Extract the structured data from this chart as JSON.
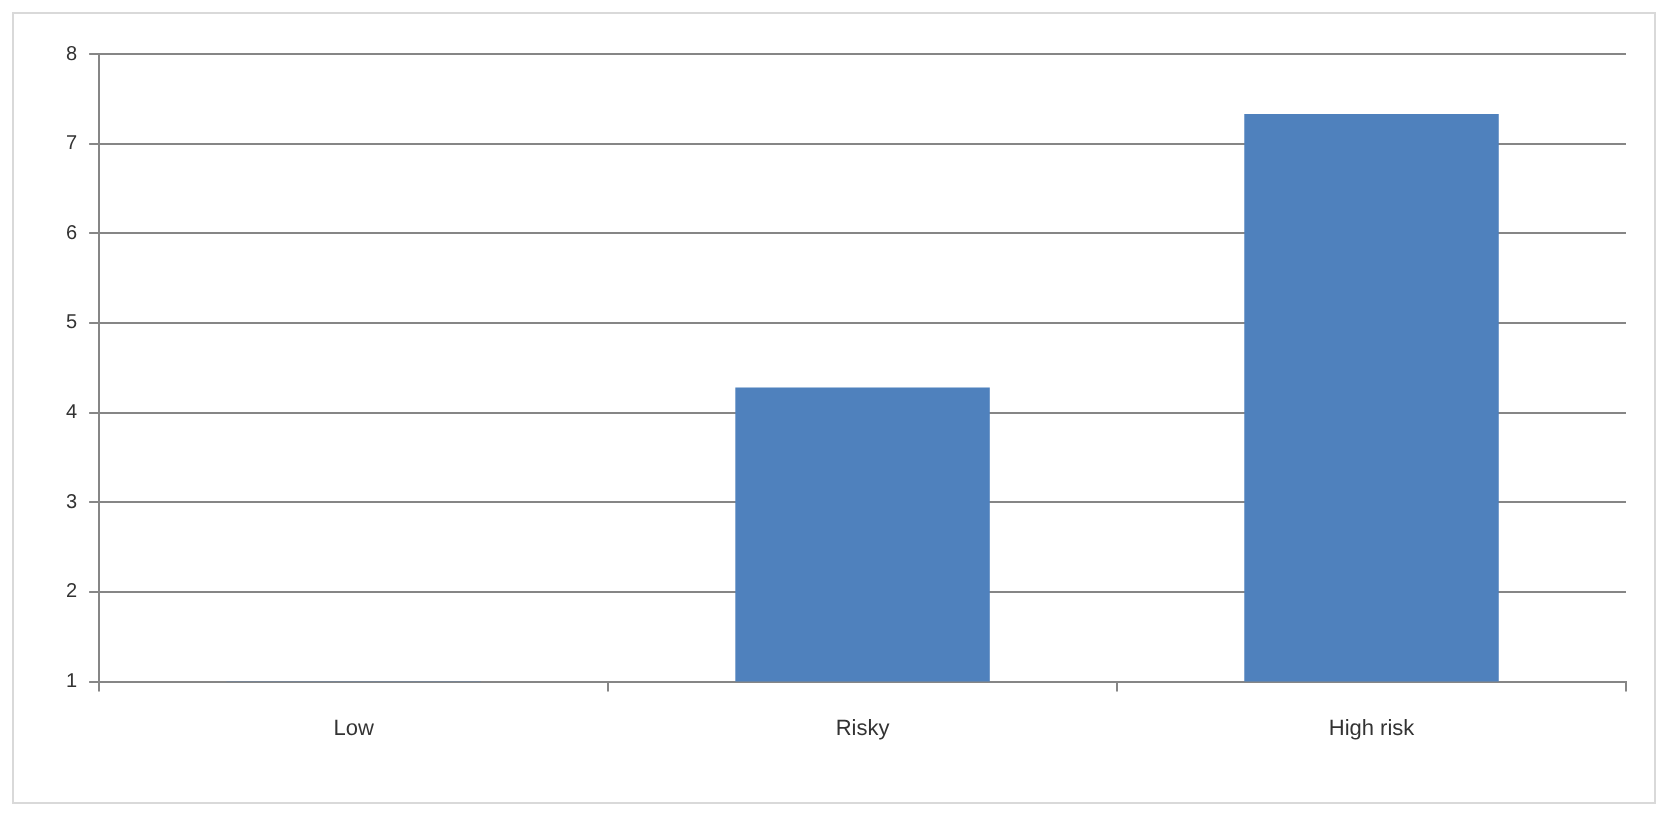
{
  "chart_data": {
    "type": "bar",
    "categories": [
      "Low",
      "Risky",
      "High risk"
    ],
    "values": [
      1,
      4.28,
      7.33
    ],
    "color": "#4f81bd",
    "ylim": [
      1,
      8
    ],
    "yticks": [
      1,
      2,
      3,
      4,
      5,
      6,
      7,
      8
    ],
    "grid": "y",
    "legend": false
  }
}
